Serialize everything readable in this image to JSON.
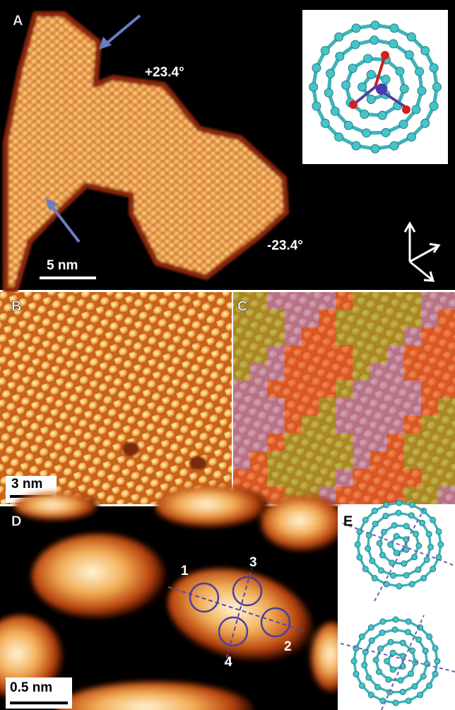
{
  "panels": {
    "A": {
      "label": "A",
      "angle_labels": [
        "+23.4°",
        "-23.4°"
      ],
      "scale_bar": "5 nm"
    },
    "B": {
      "label": "B",
      "scale_bar": "3 nm"
    },
    "C": {
      "label": "C"
    },
    "D": {
      "label": "D",
      "site_labels": [
        "1",
        "2",
        "3",
        "4"
      ],
      "scale_bar": "0.5 nm"
    },
    "E": {
      "label": "E"
    }
  }
}
